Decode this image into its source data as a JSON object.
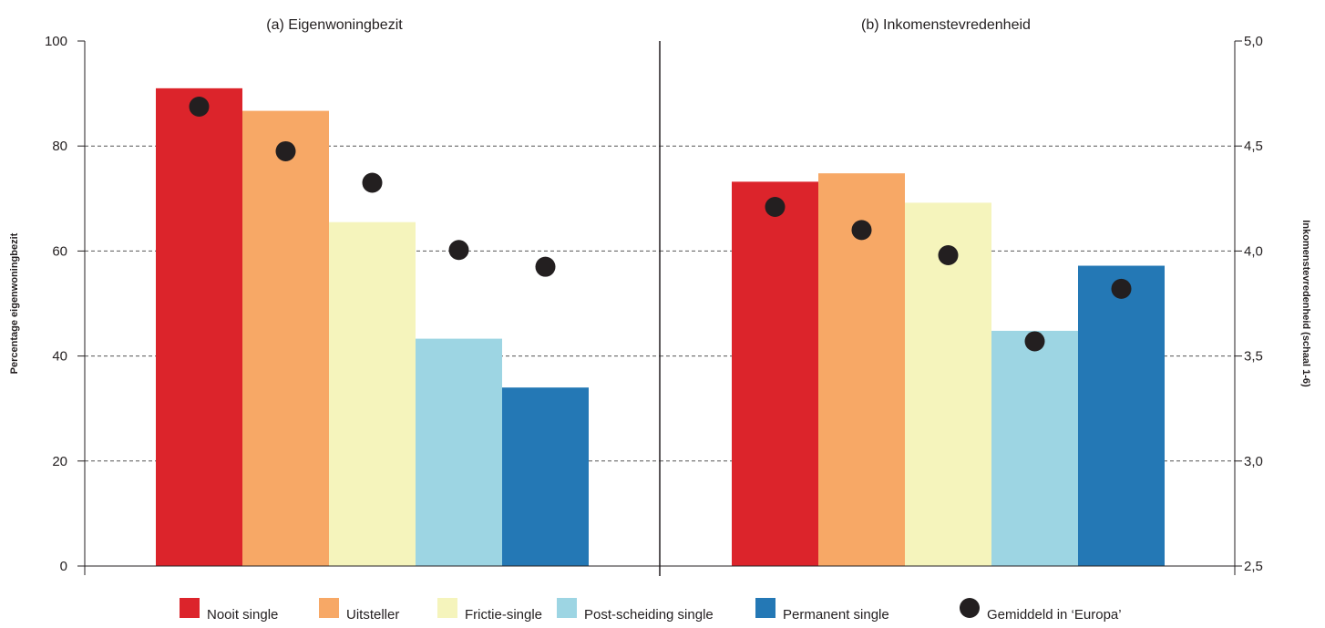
{
  "chart_data": [
    {
      "type": "bar",
      "title": "(a) Eigenwoningbezit",
      "ylabel": "Percentage eigenwoningbezit",
      "ylim": [
        0,
        100
      ],
      "yticks": [
        "0",
        "20",
        "40",
        "60",
        "80",
        "100"
      ],
      "categories": [
        "Nooit single",
        "Uitsteller",
        "Frictie-single",
        "Post-scheiding single",
        "Permanent single"
      ],
      "values": [
        91,
        86.7,
        65.5,
        43.3,
        34
      ],
      "markers": {
        "name": "Gemiddeld in ‘Europa’",
        "values": [
          87.5,
          79,
          73,
          60.2,
          57
        ]
      },
      "grid": true
    },
    {
      "type": "bar",
      "title": "(b) Inkomenstevredenheid",
      "ylabel": "Inkomenstevredenheid (schaal 1-6)",
      "ylim": [
        2.5,
        5.0
      ],
      "yticks": [
        "2,5",
        "3,0",
        "3,5",
        "4,0",
        "4,5",
        "5,0"
      ],
      "categories": [
        "Nooit single",
        "Uitsteller",
        "Frictie-single",
        "Post-scheiding single",
        "Permanent single"
      ],
      "values": [
        4.33,
        4.37,
        4.23,
        3.62,
        3.93
      ],
      "markers": {
        "name": "Gemiddeld in ‘Europa’",
        "values": [
          4.21,
          4.1,
          3.98,
          3.57,
          3.82
        ]
      },
      "grid": true
    }
  ],
  "legend": {
    "position": "bottom",
    "items": [
      {
        "label": "Nooit single",
        "color": "#dc242b",
        "shape": "square"
      },
      {
        "label": "Uitsteller",
        "color": "#f7a866",
        "shape": "square"
      },
      {
        "label": "Frictie-single",
        "color": "#f5f4bc",
        "shape": "square"
      },
      {
        "label": "Post-scheiding single",
        "color": "#9dd5e3",
        "shape": "square"
      },
      {
        "label": "Permanent single",
        "color": "#2478b5",
        "shape": "square"
      },
      {
        "label": "Gemiddeld in ‘Europa’",
        "color": "#231f20",
        "shape": "circle"
      }
    ]
  },
  "colors": {
    "bars": [
      "#dc242b",
      "#f7a866",
      "#f5f4bc",
      "#9dd5e3",
      "#2478b5"
    ],
    "marker": "#231f20",
    "axis": "#231f20",
    "grid": "#555555"
  }
}
